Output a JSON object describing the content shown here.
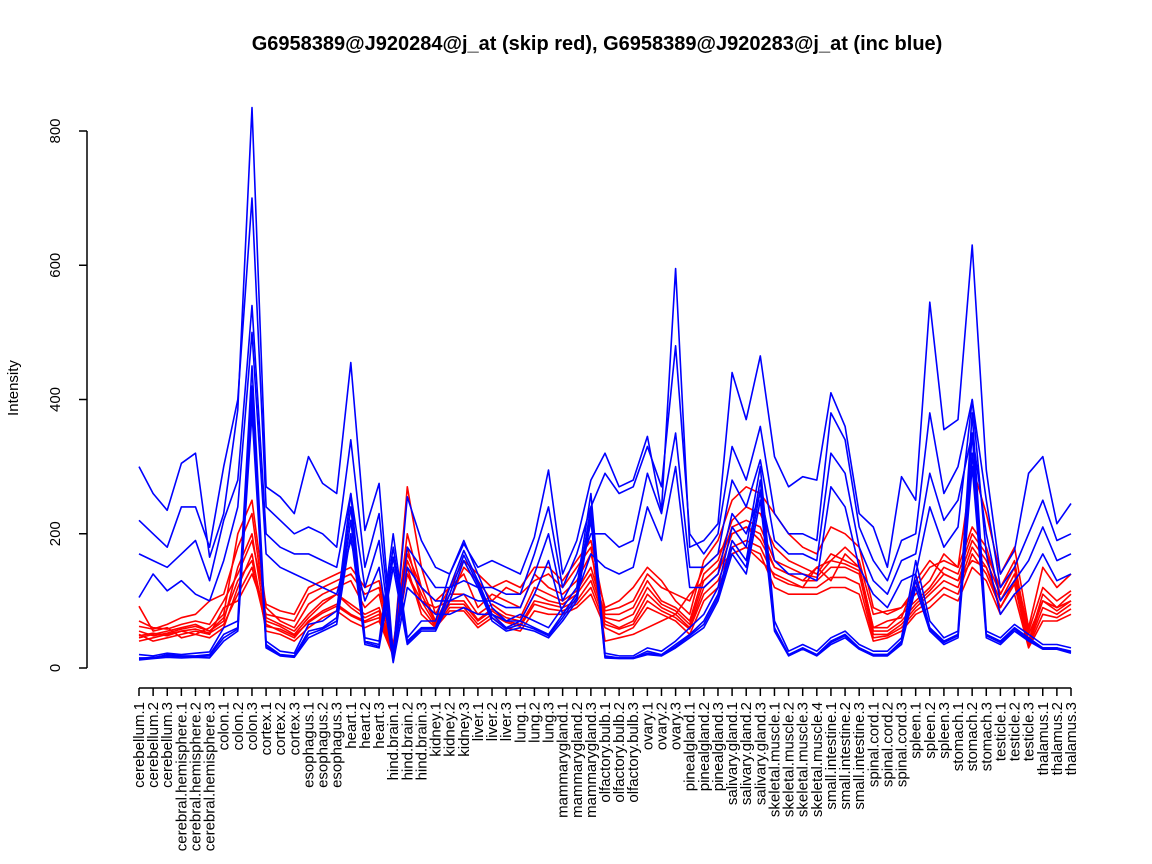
{
  "chart_data": {
    "type": "line",
    "title": "G6958389@J920284@j_at (skip red), G6958389@J920283@j_at (inc blue)",
    "xlabel": "",
    "ylabel": "Intensity",
    "ylim": [
      0,
      840
    ],
    "yticks": [
      0,
      200,
      400,
      600,
      800
    ],
    "grid": false,
    "legend": "none",
    "categories": [
      "cerebellum.1",
      "cerebellum.2",
      "cerebellum.3",
      "cerebral.hemisphere.1",
      "cerebral.hemisphere.2",
      "cerebral.hemisphere.3",
      "colon.1",
      "colon.2",
      "colon.3",
      "cortex.1",
      "cortex.2",
      "cortex.3",
      "esophagus.1",
      "esophagus.2",
      "esophagus.3",
      "heart.1",
      "heart.2",
      "heart.3",
      "hind.brain.1",
      "hind.brain.2",
      "hind.brain.3",
      "kidney.1",
      "kidney.2",
      "kidney.3",
      "liver.1",
      "liver.2",
      "liver.3",
      "lung.1",
      "lung.2",
      "lung.3",
      "mammarygland.1",
      "mammarygland.2",
      "mammarygland.3",
      "olfactory.bulb.1",
      "olfactory.bulb.2",
      "olfactory.bulb.3",
      "ovary.1",
      "ovary.2",
      "ovary.3",
      "pinealgland.1",
      "pinealgland.2",
      "pinealgland.3",
      "salivary.gland.1",
      "salivary.gland.2",
      "salivary.gland.3",
      "skeletal.muscle.1",
      "skeletal.muscle.2",
      "skeletal.muscle.3",
      "skeletal.muscle.4",
      "small.intestine.1",
      "small.intestine.2",
      "small.intestine.3",
      "spinal.cord.1",
      "spinal.cord.2",
      "spinal.cord.3",
      "spleen.1",
      "spleen.2",
      "spleen.3",
      "stomach.1",
      "stomach.2",
      "stomach.3",
      "testicle.1",
      "testicle.2",
      "testicle.3",
      "thalamus.1",
      "thalamus.2",
      "thalamus.3"
    ],
    "series": [
      {
        "name": "skip red 1",
        "color": "#ff0000",
        "values": [
          92,
          55,
          60,
          45,
          50,
          60,
          80,
          200,
          250,
          90,
          70,
          60,
          95,
          110,
          120,
          130,
          90,
          110,
          20,
          270,
          150,
          80,
          120,
          140,
          90,
          110,
          100,
          90,
          140,
          120,
          110,
          130,
          170,
          90,
          100,
          120,
          150,
          130,
          100,
          80,
          160,
          190,
          250,
          270,
          260,
          230,
          200,
          180,
          170,
          210,
          200,
          180,
          90,
          80,
          90,
          110,
          130,
          170,
          150,
          300,
          230,
          140,
          180,
          60,
          150,
          120,
          140
        ]
      },
      {
        "name": "skip red 2",
        "color": "#ff0000",
        "values": [
          62,
          58,
          65,
          75,
          80,
          100,
          110,
          180,
          230,
          75,
          65,
          55,
          80,
          100,
          110,
          95,
          80,
          90,
          25,
          200,
          120,
          70,
          110,
          110,
          80,
          95,
          80,
          75,
          120,
          110,
          100,
          115,
          150,
          80,
          80,
          90,
          130,
          100,
          90,
          70,
          140,
          160,
          220,
          240,
          230,
          180,
          160,
          150,
          140,
          170,
          160,
          150,
          60,
          60,
          80,
          100,
          120,
          150,
          140,
          200,
          170,
          120,
          160,
          40,
          110,
          90,
          110
        ]
      },
      {
        "name": "skip red 3",
        "color": "#ff0000",
        "values": [
          45,
          50,
          55,
          60,
          65,
          55,
          70,
          150,
          200,
          65,
          55,
          45,
          70,
          85,
          95,
          80,
          70,
          80,
          20,
          180,
          100,
          65,
          95,
          95,
          70,
          85,
          70,
          65,
          100,
          95,
          90,
          100,
          130,
          70,
          60,
          70,
          110,
          90,
          80,
          60,
          120,
          140,
          200,
          210,
          200,
          150,
          140,
          130,
          130,
          150,
          150,
          140,
          50,
          50,
          65,
          90,
          110,
          130,
          120,
          180,
          150,
          100,
          140,
          35,
          90,
          80,
          95
        ]
      },
      {
        "name": "skip red 4",
        "color": "#ff0000",
        "values": [
          40,
          45,
          50,
          55,
          50,
          45,
          60,
          120,
          170,
          55,
          50,
          40,
          60,
          75,
          85,
          70,
          60,
          70,
          18,
          150,
          80,
          60,
          85,
          85,
          60,
          75,
          60,
          55,
          85,
          80,
          80,
          90,
          110,
          60,
          50,
          60,
          90,
          80,
          70,
          50,
          100,
          120,
          170,
          180,
          170,
          120,
          110,
          110,
          110,
          120,
          120,
          110,
          40,
          45,
          55,
          80,
          90,
          110,
          100,
          150,
          130,
          80,
          110,
          30,
          70,
          70,
          80
        ]
      },
      {
        "name": "skip red 5",
        "color": "#ff0000",
        "values": [
          50,
          40,
          45,
          50,
          55,
          50,
          90,
          100,
          140,
          80,
          75,
          70,
          110,
          120,
          130,
          140,
          110,
          120,
          30,
          140,
          100,
          90,
          100,
          150,
          130,
          100,
          120,
          110,
          130,
          140,
          120,
          150,
          180,
          40,
          45,
          50,
          60,
          70,
          80,
          110,
          130,
          150,
          170,
          180,
          160,
          140,
          130,
          120,
          150,
          130,
          170,
          150,
          60,
          70,
          75,
          130,
          160,
          140,
          130,
          160,
          150,
          90,
          130,
          50,
          100,
          90,
          100
        ]
      },
      {
        "name": "skip red 6",
        "color": "#ff0000",
        "values": [
          55,
          48,
          52,
          58,
          62,
          55,
          75,
          130,
          160,
          70,
          62,
          50,
          75,
          95,
          110,
          90,
          75,
          85,
          22,
          160,
          110,
          68,
          100,
          100,
          72,
          88,
          75,
          70,
          110,
          100,
          95,
          110,
          140,
          75,
          70,
          80,
          120,
          95,
          85,
          65,
          130,
          150,
          210,
          220,
          210,
          160,
          150,
          140,
          135,
          160,
          155,
          145,
          55,
          55,
          70,
          95,
          115,
          140,
          130,
          190,
          160,
          110,
          150,
          38,
          100,
          85,
          100
        ]
      },
      {
        "name": "skip red 7",
        "color": "#ff0000",
        "values": [
          70,
          60,
          58,
          65,
          70,
          65,
          100,
          140,
          190,
          95,
          85,
          80,
          120,
          130,
          140,
          150,
          120,
          130,
          35,
          170,
          120,
          100,
          120,
          160,
          140,
          120,
          130,
          120,
          150,
          150,
          130,
          160,
          190,
          85,
          90,
          100,
          140,
          120,
          110,
          100,
          150,
          170,
          200,
          210,
          190,
          150,
          140,
          130,
          150,
          160,
          180,
          160,
          80,
          85,
          90,
          120,
          150,
          160,
          150,
          210,
          180,
          110,
          150,
          55,
          120,
          100,
          115
        ]
      },
      {
        "name": "skip red 8",
        "color": "#ff0000",
        "values": [
          48,
          52,
          48,
          55,
          58,
          52,
          65,
          110,
          150,
          62,
          58,
          48,
          68,
          82,
          92,
          78,
          68,
          75,
          20,
          140,
          90,
          62,
          90,
          90,
          65,
          80,
          68,
          62,
          95,
          88,
          85,
          95,
          120,
          65,
          58,
          65,
          100,
          85,
          75,
          58,
          110,
          130,
          180,
          190,
          180,
          135,
          125,
          120,
          120,
          135,
          135,
          125,
          45,
          48,
          60,
          85,
          100,
          120,
          110,
          170,
          140,
          90,
          125,
          32,
          80,
          75,
          88
        ]
      },
      {
        "name": "inc blue 1",
        "color": "#0000ff",
        "values": [
          300,
          260,
          235,
          305,
          320,
          165,
          230,
          385,
          835,
          270,
          255,
          230,
          315,
          275,
          260,
          455,
          205,
          275,
          20,
          255,
          190,
          150,
          140,
          185,
          150,
          160,
          150,
          140,
          195,
          295,
          140,
          190,
          280,
          320,
          270,
          280,
          345,
          235,
          595,
          180,
          190,
          215,
          440,
          370,
          465,
          315,
          270,
          285,
          280,
          410,
          360,
          230,
          210,
          150,
          285,
          250,
          545,
          355,
          370,
          630,
          295,
          140,
          175,
          290,
          315,
          215,
          245
        ]
      },
      {
        "name": "inc blue 2",
        "color": "#0000ff",
        "values": [
          220,
          200,
          180,
          240,
          240,
          180,
          300,
          400,
          700,
          240,
          220,
          200,
          210,
          200,
          180,
          340,
          150,
          230,
          15,
          180,
          150,
          120,
          120,
          130,
          120,
          120,
          110,
          110,
          170,
          240,
          120,
          170,
          240,
          290,
          260,
          270,
          330,
          270,
          480,
          200,
          170,
          200,
          330,
          280,
          360,
          230,
          200,
          200,
          190,
          380,
          340,
          210,
          160,
          130,
          190,
          200,
          380,
          260,
          300,
          400,
          250,
          120,
          150,
          200,
          250,
          190,
          200
        ]
      },
      {
        "name": "inc blue 3",
        "color": "#0000ff",
        "values": [
          170,
          160,
          150,
          170,
          190,
          130,
          220,
          280,
          540,
          200,
          180,
          170,
          170,
          160,
          150,
          260,
          120,
          190,
          10,
          150,
          120,
          100,
          100,
          110,
          100,
          100,
          90,
          90,
          140,
          200,
          100,
          140,
          200,
          200,
          180,
          190,
          290,
          230,
          350,
          150,
          150,
          170,
          280,
          240,
          310,
          190,
          170,
          170,
          160,
          320,
          290,
          180,
          130,
          110,
          160,
          170,
          290,
          220,
          250,
          350,
          200,
          100,
          130,
          160,
          210,
          160,
          170
        ]
      },
      {
        "name": "inc blue 4",
        "color": "#0000ff",
        "values": [
          105,
          140,
          115,
          130,
          110,
          100,
          160,
          240,
          500,
          170,
          150,
          140,
          130,
          120,
          110,
          190,
          100,
          150,
          8,
          120,
          100,
          80,
          80,
          90,
          80,
          80,
          70,
          70,
          110,
          160,
          80,
          110,
          170,
          150,
          140,
          150,
          240,
          190,
          300,
          120,
          120,
          140,
          230,
          200,
          260,
          160,
          140,
          140,
          130,
          270,
          240,
          150,
          110,
          90,
          130,
          140,
          240,
          180,
          210,
          400,
          170,
          80,
          110,
          130,
          170,
          130,
          140
        ]
      },
      {
        "name": "inc blue 5",
        "color": "#0000ff",
        "values": [
          15,
          15,
          20,
          18,
          18,
          20,
          50,
          60,
          420,
          35,
          20,
          18,
          55,
          60,
          75,
          240,
          40,
          35,
          180,
          40,
          60,
          60,
          120,
          175,
          130,
          80,
          60,
          70,
          60,
          50,
          80,
          110,
          240,
          18,
          15,
          15,
          25,
          20,
          35,
          50,
          70,
          110,
          190,
          160,
          280,
          60,
          20,
          30,
          20,
          40,
          50,
          30,
          20,
          20,
          40,
          140,
          60,
          40,
          50,
          350,
          50,
          40,
          60,
          45,
          30,
          30,
          25
        ]
      },
      {
        "name": "inc blue 6",
        "color": "#0000ff",
        "values": [
          12,
          14,
          16,
          15,
          16,
          15,
          40,
          55,
          380,
          30,
          18,
          16,
          45,
          55,
          65,
          200,
          35,
          30,
          150,
          35,
          55,
          55,
          100,
          160,
          120,
          70,
          55,
          60,
          55,
          45,
          70,
          100,
          220,
          15,
          14,
          14,
          20,
          18,
          30,
          45,
          60,
          100,
          170,
          140,
          250,
          55,
          18,
          28,
          18,
          35,
          45,
          28,
          18,
          18,
          35,
          120,
          55,
          35,
          45,
          300,
          45,
          35,
          55,
          40,
          28,
          28,
          22
        ]
      },
      {
        "name": "inc blue 7",
        "color": "#0000ff",
        "values": [
          20,
          18,
          22,
          20,
          22,
          24,
          60,
          70,
          450,
          40,
          25,
          22,
          65,
          70,
          85,
          260,
          45,
          40,
          200,
          45,
          70,
          70,
          140,
          190,
          140,
          90,
          70,
          80,
          70,
          60,
          90,
          120,
          260,
          22,
          18,
          18,
          30,
          25,
          40,
          60,
          80,
          120,
          210,
          180,
          300,
          70,
          25,
          35,
          25,
          45,
          55,
          35,
          25,
          25,
          45,
          160,
          70,
          45,
          55,
          380,
          55,
          45,
          65,
          50,
          35,
          35,
          30
        ]
      },
      {
        "name": "inc blue 8",
        "color": "#0000ff",
        "values": [
          14,
          16,
          18,
          17,
          17,
          18,
          45,
          58,
          400,
          32,
          19,
          17,
          50,
          58,
          70,
          220,
          38,
          32,
          165,
          38,
          58,
          58,
          110,
          168,
          125,
          75,
          58,
          65,
          58,
          48,
          75,
          105,
          230,
          17,
          15,
          15,
          22,
          19,
          32,
          48,
          65,
          105,
          180,
          150,
          265,
          58,
          19,
          30,
          19,
          38,
          48,
          30,
          20,
          20,
          38,
          130,
          58,
          38,
          48,
          320,
          48,
          38,
          58,
          42,
          30,
          30,
          24
        ]
      }
    ]
  }
}
